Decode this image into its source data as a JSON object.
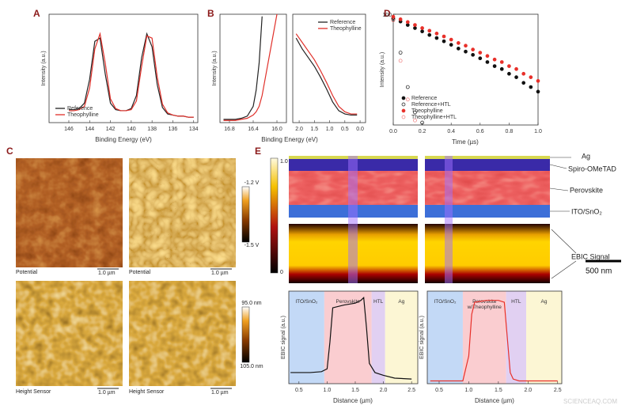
{
  "panel_labels": [
    "A",
    "B",
    "C",
    "D",
    "E"
  ],
  "afm": {
    "captions": [
      "Potential",
      "Potential",
      "Height Sensor",
      "Height Sensor"
    ],
    "scale_bar": "1.0 µm",
    "potential_scale": [
      "-1.2 V",
      "-1.5 V"
    ],
    "height_scale": [
      "95.0 nm",
      "105.0 nm"
    ]
  },
  "ebic": {
    "layers": [
      "Ag",
      "Spiro-OMeTAD",
      "Perovskite",
      "ITO/SnO₂"
    ],
    "signal_label": "EBIC Signal",
    "scale_bar": "500 nm",
    "colorbar": [
      "1.0",
      "0"
    ]
  },
  "watermark": "SCIENCEAQ.COM",
  "chart_data": [
    {
      "type": "line",
      "x_label": "Binding Energy (eV)",
      "y_label": "Intensity (a.u.)",
      "xlim": [
        147.9,
        133.6
      ],
      "xticks": [
        146,
        144,
        142,
        140,
        138,
        136,
        134
      ],
      "ylim": [
        0,
        1
      ],
      "legend": "lower left",
      "x": [
        146,
        145.5,
        145,
        144.5,
        144,
        143.5,
        143,
        142.5,
        142,
        141.5,
        141,
        140.5,
        140,
        139.5,
        139,
        138.5,
        138,
        137.5,
        137,
        136.5,
        136,
        135.5,
        135,
        134.5,
        134
      ],
      "series": [
        {
          "name": "Reference",
          "color": "#222222",
          "values": [
            0.12,
            0.12,
            0.13,
            0.18,
            0.4,
            0.75,
            0.78,
            0.45,
            0.18,
            0.12,
            0.11,
            0.11,
            0.13,
            0.25,
            0.6,
            0.82,
            0.7,
            0.35,
            0.14,
            0.08,
            0.07,
            0.06,
            0.06,
            0.05,
            0.05
          ]
        },
        {
          "name": "Theophylline",
          "color": "#e0302a",
          "values": [
            0.11,
            0.11,
            0.12,
            0.15,
            0.32,
            0.68,
            0.82,
            0.55,
            0.22,
            0.13,
            0.11,
            0.11,
            0.12,
            0.2,
            0.52,
            0.8,
            0.78,
            0.42,
            0.17,
            0.09,
            0.07,
            0.06,
            0.06,
            0.05,
            0.05
          ]
        }
      ]
    },
    {
      "type": "line",
      "y_label": "Intensity (a.u.)",
      "xlim": [
        16.96,
        15.84
      ],
      "xticks": [
        16.8,
        16.4,
        {
          "value": 16,
          "label": "16.0"
        }
      ],
      "ylim": [
        0,
        1
      ],
      "x": [
        16.9,
        16.8,
        16.7,
        16.6,
        16.5,
        16.4,
        16.35,
        16.3,
        16.25,
        16.2,
        16.1,
        16.0
      ],
      "series": [
        {
          "name": "Reference",
          "color": "#222222",
          "values": [
            0.03,
            0.03,
            0.03,
            0.04,
            0.06,
            0.15,
            0.3,
            0.55,
            0.98,
            null,
            null,
            null
          ]
        },
        {
          "name": "Theophylline",
          "color": "#e0302a",
          "values": [
            0.02,
            0.02,
            0.02,
            0.03,
            0.04,
            0.07,
            0.1,
            0.15,
            0.25,
            0.4,
            0.7,
            1.0
          ]
        }
      ]
    },
    {
      "type": "line",
      "x_label": "Binding Energy (eV)",
      "xlim": [
        2.21,
        -0.18
      ],
      "xticks": [
        {
          "value": 2,
          "label": "2.0"
        },
        1.5,
        {
          "value": 1,
          "label": "1.0"
        },
        0.5,
        {
          "value": 0,
          "label": "0.0"
        }
      ],
      "ylim": [
        0,
        1
      ],
      "legend": "upper right",
      "x": [
        2.1,
        1.9,
        1.7,
        1.5,
        1.3,
        1.1,
        0.9,
        0.7,
        0.5,
        0.3,
        0.1
      ],
      "series": [
        {
          "name": "Reference",
          "color": "#222222",
          "values": [
            0.78,
            0.68,
            0.6,
            0.52,
            0.42,
            0.31,
            0.19,
            0.11,
            0.08,
            0.07,
            0.07
          ]
        },
        {
          "name": "Theophylline",
          "color": "#e0302a",
          "values": [
            0.82,
            0.74,
            0.66,
            0.58,
            0.48,
            0.37,
            0.25,
            0.15,
            0.1,
            0.08,
            0.08
          ]
        }
      ]
    },
    {
      "type": "scatter",
      "x_label": "Time (µs)",
      "y_label": "Intensity (a.u.)",
      "log_y": true,
      "xlim": [
        0,
        1
      ],
      "xticks": [
        {
          "value": 0,
          "label": "0.0"
        },
        0.2,
        0.4,
        0.6,
        0.8,
        {
          "value": 1,
          "label": "1.0"
        }
      ],
      "ylim": [
        10,
        100
      ],
      "yticks": [
        100
      ],
      "legend": "lower left",
      "x": [
        0,
        0.05,
        0.1,
        0.15,
        0.2,
        0.25,
        0.3,
        0.35,
        0.4,
        0.45,
        0.5,
        0.55,
        0.6,
        0.65,
        0.7,
        0.75,
        0.8,
        0.85,
        0.9,
        0.95,
        1
      ],
      "series": [
        {
          "name": "Reference",
          "color": "#111111",
          "filled": true,
          "values": [
            92,
            86,
            80,
            75,
            70,
            65,
            61,
            57,
            53,
            49,
            46,
            43,
            40,
            37,
            34,
            32,
            29,
            27,
            24,
            22,
            20
          ]
        },
        {
          "name": "Reference+HTL",
          "color": "#111111",
          "filled": false,
          "values": [
            90,
            45,
            22,
            13,
            10.5,
            null,
            null,
            null,
            null,
            null,
            null,
            null,
            null,
            null,
            null,
            null,
            null,
            null,
            null,
            null,
            null
          ]
        },
        {
          "name": "Theophylline",
          "color": "#e8302a",
          "filled": true,
          "values": [
            95,
            90,
            85,
            80,
            75,
            71,
            67,
            63,
            59,
            55,
            52,
            48,
            45,
            42,
            39,
            37,
            34,
            32,
            29,
            27,
            25
          ]
        },
        {
          "name": "Theophylline+HTL",
          "color": "#f07a7a",
          "filled": false,
          "values": [
            88,
            38,
            17,
            11,
            null,
            null,
            null,
            null,
            null,
            null,
            null,
            null,
            null,
            null,
            null,
            null,
            null,
            null,
            null,
            null,
            null
          ]
        }
      ]
    },
    {
      "type": "line",
      "x_label": "Distance (µm)",
      "y_label": "EBIC signal (a.u.)",
      "xlim": [
        0.32,
        2.61
      ],
      "xticks": [
        0.5,
        {
          "value": 1,
          "label": "1.0"
        },
        1.5,
        {
          "value": 2,
          "label": "2.0"
        },
        2.5
      ],
      "ylim": [
        0,
        1
      ],
      "regions": [
        {
          "label": "ITO/SnO₂",
          "start": 0.32,
          "end": 0.95,
          "color": "#b8d2f4"
        },
        {
          "label": "Perovskite",
          "start": 0.95,
          "end": 1.79,
          "color": "#f9c4c8"
        },
        {
          "label": "HTL",
          "start": 1.79,
          "end": 2.03,
          "color": "#dcc8f0"
        },
        {
          "label": "Ag",
          "start": 2.03,
          "end": 2.61,
          "color": "#fbf4cc"
        }
      ],
      "x": [
        0.35,
        0.5,
        0.7,
        0.9,
        1.0,
        1.05,
        1.1,
        1.3,
        1.5,
        1.6,
        1.65,
        1.7,
        1.75,
        1.85,
        2.0,
        2.2,
        2.5
      ],
      "series": [
        {
          "name": "EBIC signal",
          "color": "#111111",
          "values": [
            0.12,
            0.12,
            0.12,
            0.13,
            0.16,
            0.45,
            0.82,
            0.85,
            0.87,
            0.9,
            0.93,
            0.6,
            0.22,
            0.12,
            0.09,
            0.06,
            0.05
          ]
        }
      ]
    },
    {
      "type": "line",
      "x_label": "Distance (µm)",
      "y_label": "EBIC signal (a.u.)",
      "xlim": [
        0.3,
        2.57
      ],
      "xticks": [
        0.5,
        {
          "value": 1,
          "label": "1.0"
        },
        1.5,
        {
          "value": 2,
          "label": "2.0"
        },
        2.5
      ],
      "ylim": [
        0,
        1
      ],
      "regions": [
        {
          "label": "ITO/SnO₂",
          "start": 0.3,
          "end": 0.9,
          "color": "#b8d2f4"
        },
        {
          "label": "Perovskite w/Theophylline",
          "start": 0.9,
          "end": 1.63,
          "color": "#f9c4c8"
        },
        {
          "label": "HTL",
          "start": 1.63,
          "end": 1.97,
          "color": "#dcc8f0"
        },
        {
          "label": "Ag",
          "start": 1.97,
          "end": 2.57,
          "color": "#fbf4cc"
        }
      ],
      "x": [
        0.35,
        0.5,
        0.7,
        0.9,
        1.0,
        1.05,
        1.1,
        1.3,
        1.5,
        1.6,
        1.65,
        1.7,
        1.75,
        1.85,
        2.0,
        2.2,
        2.5
      ],
      "series": [
        {
          "name": "EBIC signal w/Theophylline",
          "color": "#e8302a",
          "values": [
            0.03,
            0.03,
            0.03,
            0.03,
            0.3,
            0.75,
            0.88,
            0.9,
            0.9,
            0.88,
            0.5,
            0.12,
            0.05,
            0.03,
            0.03,
            0.03,
            0.03
          ]
        }
      ]
    }
  ]
}
